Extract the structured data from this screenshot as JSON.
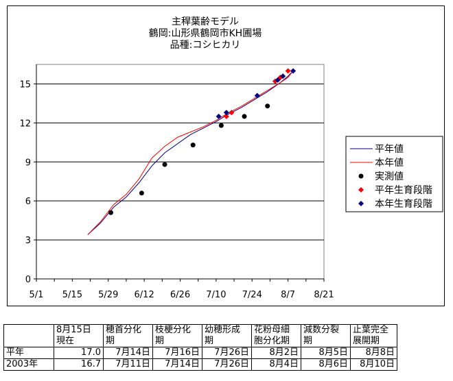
{
  "chart_data": {
    "type": "line",
    "title_lines": [
      "主稈葉齢モデル",
      "鶴岡:山形県鶴岡市KH圃場",
      "品種:コシヒカリ"
    ],
    "x_ticks": [
      "5/1",
      "5/15",
      "5/29",
      "6/12",
      "6/26",
      "7/10",
      "7/24",
      "8/7",
      "8/21"
    ],
    "x_tick_days": [
      0,
      14,
      28,
      42,
      56,
      70,
      84,
      98,
      112
    ],
    "xlim": [
      0,
      112
    ],
    "y_ticks": [
      "0",
      "3",
      "6",
      "9",
      "12",
      "15"
    ],
    "y_tick_values": [
      0,
      3,
      6,
      9,
      12,
      15
    ],
    "ylim": [
      0,
      16.5
    ],
    "grid": "horizontal",
    "legend_position": "right",
    "series": [
      {
        "name": "平年値",
        "kind": "line",
        "color": "#000080",
        "points": [
          [
            20,
            3.4
          ],
          [
            25,
            4.3
          ],
          [
            30,
            5.5
          ],
          [
            35,
            6.3
          ],
          [
            40,
            7.4
          ],
          [
            45,
            8.7
          ],
          [
            50,
            9.7
          ],
          [
            55,
            10.4
          ],
          [
            60,
            11.1
          ],
          [
            65,
            11.6
          ],
          [
            70,
            12.1
          ],
          [
            75,
            12.7
          ],
          [
            80,
            13.2
          ],
          [
            85,
            13.8
          ],
          [
            90,
            14.4
          ],
          [
            95,
            15.1
          ],
          [
            98,
            15.6
          ],
          [
            100,
            16.0
          ]
        ]
      },
      {
        "name": "本年値",
        "kind": "line",
        "color": "#ff0000",
        "points": [
          [
            20,
            3.4
          ],
          [
            25,
            4.4
          ],
          [
            30,
            5.7
          ],
          [
            35,
            6.5
          ],
          [
            40,
            7.7
          ],
          [
            45,
            9.3
          ],
          [
            50,
            10.2
          ],
          [
            55,
            10.9
          ],
          [
            60,
            11.3
          ],
          [
            65,
            11.7
          ],
          [
            70,
            12.2
          ],
          [
            75,
            12.8
          ],
          [
            80,
            13.3
          ],
          [
            85,
            13.9
          ],
          [
            90,
            14.5
          ],
          [
            95,
            15.1
          ],
          [
            98,
            15.5
          ],
          [
            100,
            16.0
          ]
        ]
      },
      {
        "name": "実測値",
        "kind": "marker",
        "shape": "circle",
        "color": "#000000",
        "points": [
          [
            29,
            5.1
          ],
          [
            41,
            6.6
          ],
          [
            50,
            8.8
          ],
          [
            61,
            10.3
          ],
          [
            72,
            11.8
          ],
          [
            81,
            12.5
          ],
          [
            90,
            13.3
          ]
        ]
      },
      {
        "name": "平年生育段階",
        "kind": "marker",
        "shape": "diamond",
        "color": "#ff0000",
        "points": [
          [
            74,
            12.5
          ],
          [
            76,
            12.8
          ],
          [
            93,
            15.2
          ],
          [
            95,
            15.5
          ],
          [
            98,
            16.0
          ]
        ]
      },
      {
        "name": "本年生育段階",
        "kind": "marker",
        "shape": "diamond",
        "color": "#000080",
        "points": [
          [
            71,
            12.5
          ],
          [
            74,
            12.8
          ],
          [
            86,
            14.1
          ],
          [
            94,
            15.3
          ],
          [
            96,
            15.6
          ],
          [
            100,
            16.0
          ]
        ]
      }
    ]
  },
  "stage_table": {
    "headers": [
      [
        "8月15日",
        "現在"
      ],
      [
        "穂首分化",
        "期"
      ],
      [
        "枝梗分化",
        "期"
      ],
      [
        "幼穂形成",
        "期"
      ],
      [
        "花粉母細",
        "胞分化期"
      ],
      [
        "減数分裂",
        "期"
      ],
      [
        "止葉完全",
        "展開期"
      ]
    ],
    "rows": [
      {
        "label": "平年",
        "values": [
          "17.0",
          "7月14日",
          "7月16日",
          "7月26日",
          "8月2日",
          "8月5日",
          "8月8日"
        ]
      },
      {
        "label": "2003年",
        "values": [
          "16.7",
          "7月11日",
          "7月14日",
          "7月26日",
          "8月4日",
          "8月6日",
          "8月10日"
        ]
      }
    ]
  }
}
